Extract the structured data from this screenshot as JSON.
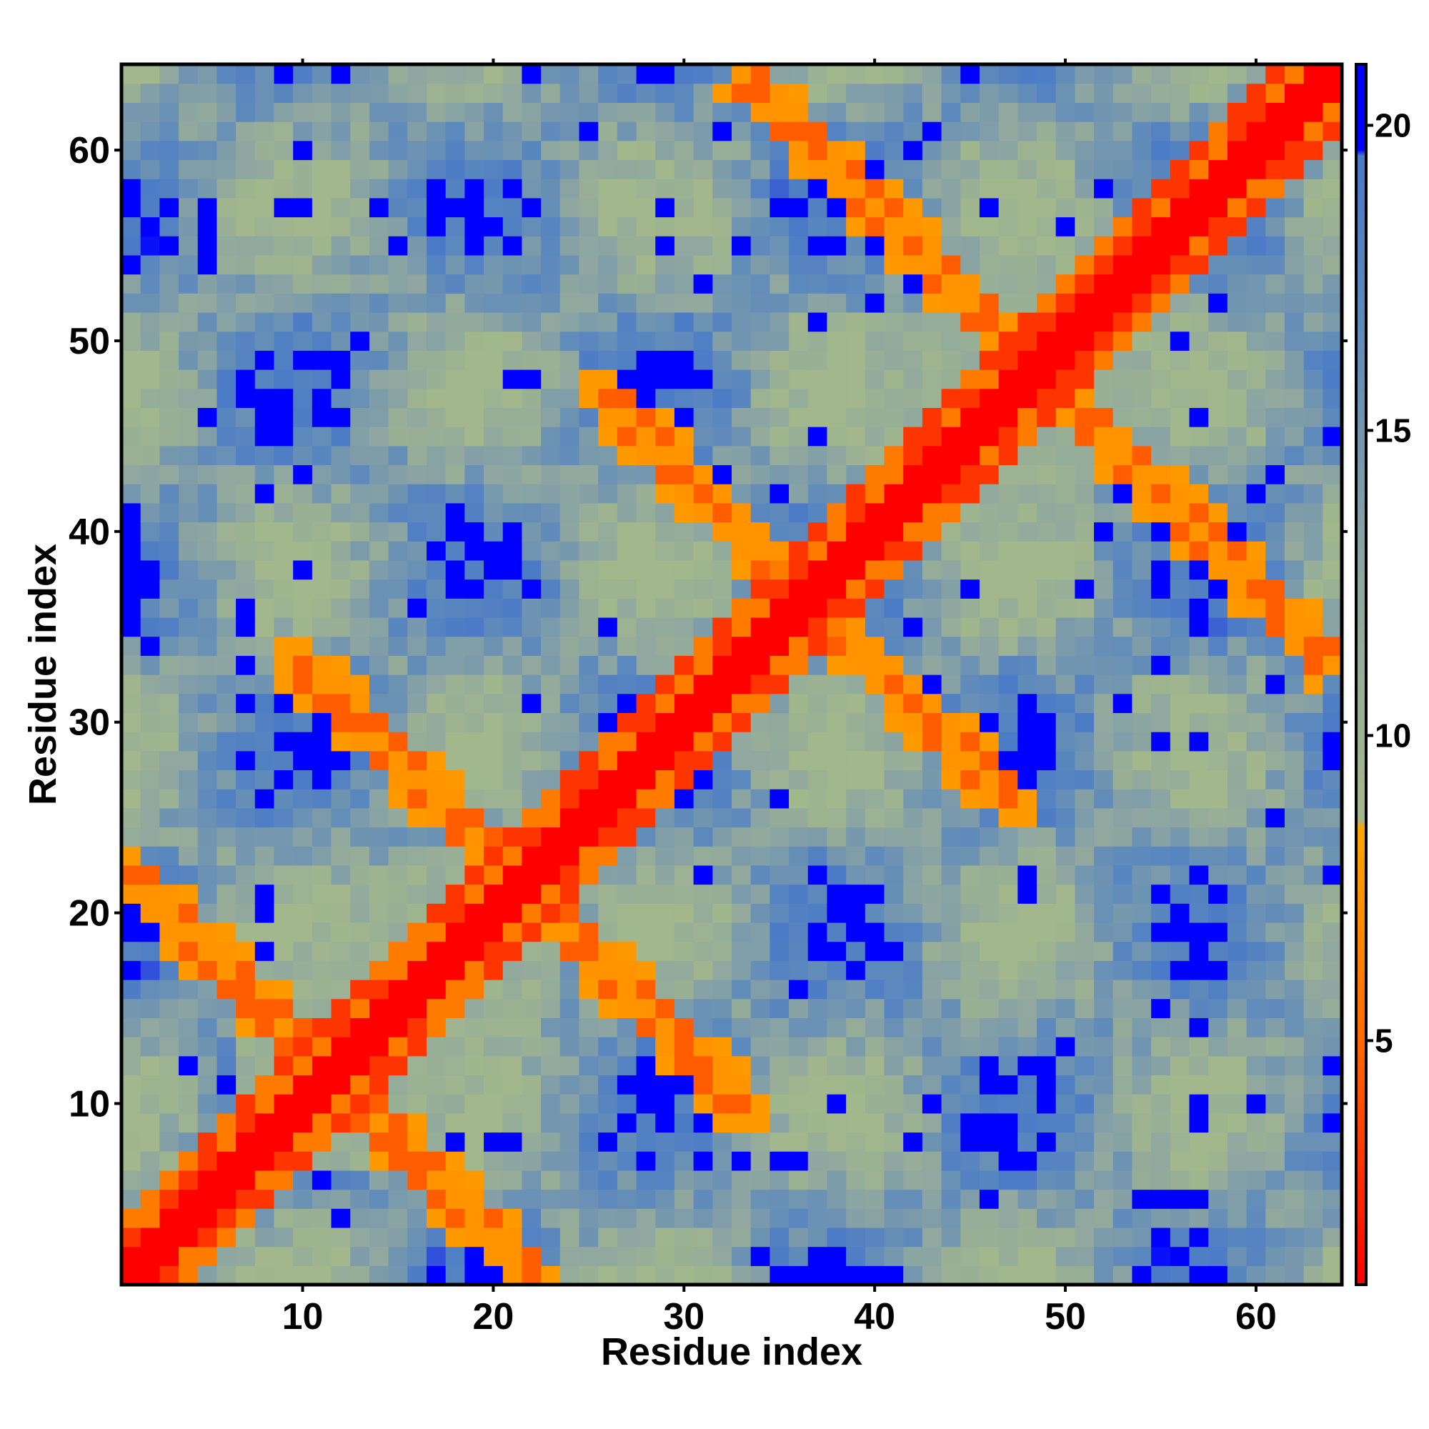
{
  "chart_data": {
    "type": "heatmap",
    "title": "",
    "xlabel": "Residue index",
    "ylabel": "Residue index",
    "n": 64,
    "xlim": [
      0.5,
      64.5
    ],
    "ylim": [
      0.5,
      64.5
    ],
    "x_ticks": [
      10,
      20,
      30,
      40,
      50,
      60
    ],
    "y_ticks": [
      10,
      20,
      30,
      40,
      50,
      60
    ],
    "value_description": "Pairwise residue distance map, symmetric about the diagonal; values 1 to 21",
    "value_range": [
      1,
      21
    ],
    "structure": {
      "period": 9.5,
      "near_contact_offsets": [
        2,
        3
      ],
      "clusters": [
        {
          "center": [
            15,
            15
          ],
          "radius": 9
        },
        {
          "center": [
            47,
            47
          ],
          "radius": 8
        }
      ],
      "contact_bands": [
        {
          "x_from": 1,
          "x_to": 22,
          "y_from": 22,
          "y_to": 1
        },
        {
          "x_from": 10,
          "x_to": 33,
          "y_from": 33,
          "y_to": 10
        },
        {
          "x_from": 26,
          "x_to": 47,
          "y_from": 47,
          "y_to": 26
        },
        {
          "x_from": 33,
          "x_to": 60,
          "y_from": 64,
          "y_to": 37
        }
      ]
    },
    "colorbar": {
      "position": "right",
      "ticks": [
        5,
        10,
        15,
        20
      ],
      "stops": [
        {
          "v": 1,
          "color": "#ff0000"
        },
        {
          "v": 5,
          "color": "#ff6a00"
        },
        {
          "v": 8.5,
          "color": "#ffa500"
        },
        {
          "v": 8.6,
          "color": "#a3b88a"
        },
        {
          "v": 12.5,
          "color": "#8fa7a0"
        },
        {
          "v": 17,
          "color": "#5b88bd"
        },
        {
          "v": 19.5,
          "color": "#4a79c8"
        },
        {
          "v": 19.6,
          "color": "#0000ff"
        },
        {
          "v": 21,
          "color": "#0000ff"
        }
      ]
    }
  }
}
